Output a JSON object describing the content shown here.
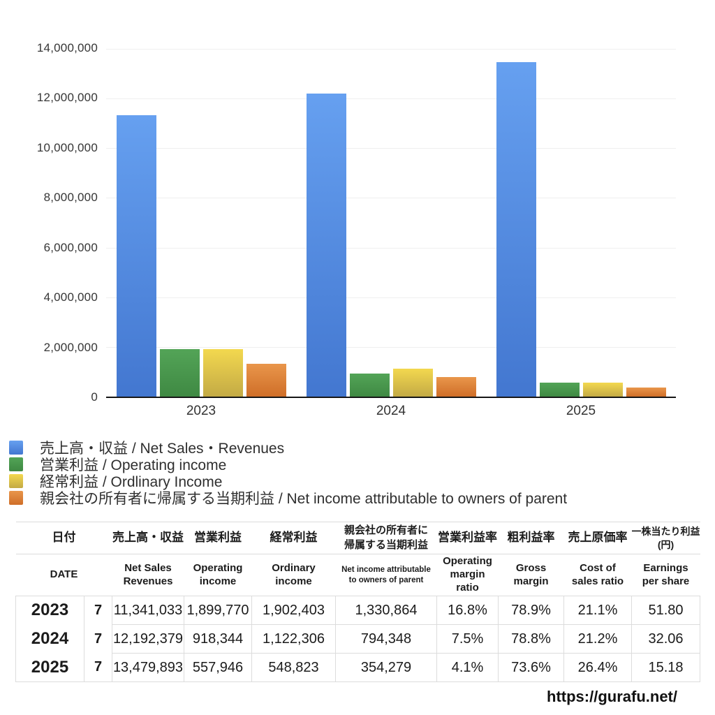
{
  "chart_data": {
    "type": "bar",
    "title": "",
    "categories": [
      "2023",
      "2024",
      "2025"
    ],
    "series": [
      {
        "key": "net-sales-revenues",
        "name": "売上高・収益 / Net Sales・Revenues",
        "values": [
          11341033,
          12192379,
          13479893
        ],
        "color_top": "#66a0f0",
        "color_bottom": "#4377d0"
      },
      {
        "key": "operating-income",
        "name": "営業利益 / Operating income",
        "values": [
          1899770,
          918344,
          557946
        ],
        "color_top": "#53a457",
        "color_bottom": "#3f8943"
      },
      {
        "key": "ordinary-income",
        "name": "経常利益 / Ordlinary Income",
        "values": [
          1902403,
          1122306,
          548823
        ],
        "color_top": "#f3d84f",
        "color_bottom": "#c3aa45"
      },
      {
        "key": "net-income-parent",
        "name": "親会社の所有者に帰属する当期利益 / Net income attributable to owners of parent",
        "values": [
          1330864,
          794348,
          354279
        ],
        "color_top": "#e9964b",
        "color_bottom": "#cf6e28"
      }
    ],
    "xlabel": "",
    "ylabel": "",
    "ylim": [
      0,
      14000000
    ],
    "ytick_step": 2000000,
    "ytick_labels": [
      "14,000,000",
      "12,000,000",
      "10,000,000",
      "8,000,000",
      "6,000,000",
      "4,000,000",
      "2,000,000",
      "0"
    ],
    "grid": true,
    "legend_position": "bottom-left"
  },
  "table": {
    "header_ja": [
      "日付",
      "売上高・収益",
      "営業利益",
      "経常利益",
      "親会社の所有者に\n帰属する当期利益",
      "営業利益率",
      "粗利益率",
      "売上原価率",
      "一株当たり利益\n(円)"
    ],
    "header_en": [
      "DATE",
      "Net Sales\nRevenues",
      "Operating\nincome",
      "Ordinary\nincome",
      "Net income attributable\nto owners of parent",
      "Operating\nmargin\nratio",
      "Gross\nmargin",
      "Cost of\nsales ratio",
      "Earnings\nper share"
    ],
    "rows": [
      {
        "year": "2023",
        "month": "7",
        "values": [
          "11,341,033",
          "1,899,770",
          "1,902,403",
          "1,330,864",
          "16.8%",
          "78.9%",
          "21.1%",
          "51.80"
        ]
      },
      {
        "year": "2024",
        "month": "7",
        "values": [
          "12,192,379",
          "918,344",
          "1,122,306",
          "794,348",
          "7.5%",
          "78.8%",
          "21.2%",
          "32.06"
        ]
      },
      {
        "year": "2025",
        "month": "7",
        "values": [
          "13,479,893",
          "557,946",
          "548,823",
          "354,279",
          "4.1%",
          "73.6%",
          "26.4%",
          "15.18"
        ]
      }
    ]
  },
  "footer": {
    "url": "https://gurafu.net/"
  }
}
